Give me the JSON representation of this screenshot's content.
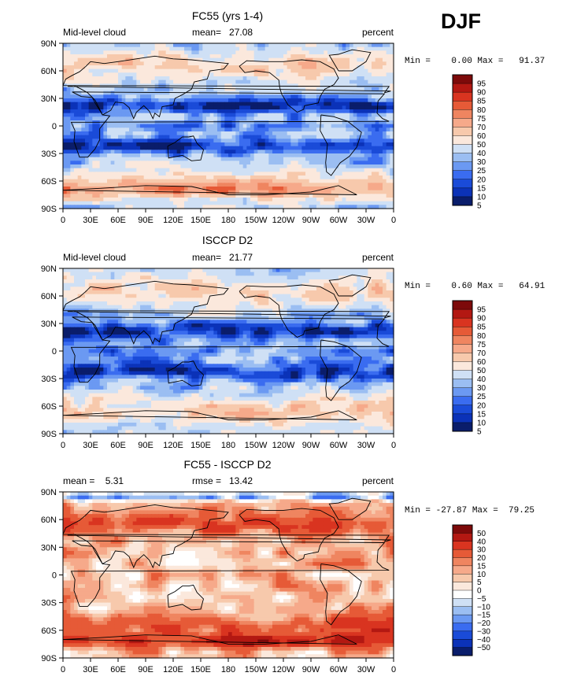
{
  "page": {
    "season": "DJF"
  },
  "palette": {
    "cloud_colors": [
      "#0a1d6b",
      "#0b32b8",
      "#1a4bd8",
      "#3a6cf0",
      "#6b99f2",
      "#9bbef2",
      "#cfe0f5",
      "#fbe8dc",
      "#f7c9ac",
      "#f6a98a",
      "#ef8560",
      "#e65a37",
      "#d93420",
      "#b31812",
      "#7d0a0a"
    ],
    "diff_colors": [
      "#0a1d6b",
      "#0b32b8",
      "#1a4bd8",
      "#3a6cf0",
      "#6b99f2",
      "#9bbef2",
      "#cfe0f5",
      "#ffffff",
      "#fbe8dc",
      "#f7c9ac",
      "#f6a98a",
      "#ef8560",
      "#e65a37",
      "#d93420",
      "#b31812",
      "#7d0a0a"
    ]
  },
  "chart_data": [
    {
      "type": "heatmap",
      "title": "FC55 (yrs 1-4)",
      "left_label": "Mid-level cloud",
      "stat_text": "mean=   27.08",
      "units": "percent",
      "minmax_text": "Min =    0.00 Max =   91.37",
      "legend_levels": [
        "95",
        "90",
        "85",
        "80",
        "75",
        "70",
        "60",
        "50",
        "40",
        "30",
        "25",
        "20",
        "15",
        "10",
        "5"
      ],
      "x_ticks": [
        "0",
        "30E",
        "60E",
        "90E",
        "120E",
        "150E",
        "180",
        "150W",
        "120W",
        "90W",
        "60W",
        "30W",
        "0"
      ],
      "y_ticks": [
        "90N",
        "60N",
        "30N",
        "0",
        "30S",
        "60S",
        "90S"
      ],
      "grid": "off",
      "legend_placement": "right"
    },
    {
      "type": "heatmap",
      "title": "ISCCP D2",
      "left_label": "Mid-level cloud",
      "stat_text": "mean=   21.77",
      "units": "percent",
      "minmax_text": "Min =    0.60 Max =   64.91",
      "legend_levels": [
        "95",
        "90",
        "85",
        "80",
        "75",
        "70",
        "60",
        "50",
        "40",
        "30",
        "25",
        "20",
        "15",
        "10",
        "5"
      ],
      "x_ticks": [
        "0",
        "30E",
        "60E",
        "90E",
        "120E",
        "150E",
        "180",
        "150W",
        "120W",
        "90W",
        "60W",
        "30W",
        "0"
      ],
      "y_ticks": [
        "90N",
        "60N",
        "30N",
        "0",
        "30S",
        "60S",
        "90S"
      ],
      "grid": "off",
      "legend_placement": "right"
    },
    {
      "type": "heatmap",
      "title": "FC55 - ISCCP D2",
      "left_label": "mean =    5.31",
      "stat_text": "rmse =   13.42",
      "units": "percent",
      "minmax_text": "Min = -27.87 Max =  79.25",
      "legend_levels": [
        "50",
        "40",
        "30",
        "20",
        "15",
        "10",
        "5",
        "0",
        "−5",
        "−10",
        "−15",
        "−20",
        "−30",
        "−40",
        "−50"
      ],
      "x_ticks": [
        "0",
        "30E",
        "60E",
        "90E",
        "120E",
        "150E",
        "180",
        "150W",
        "120W",
        "90W",
        "60W",
        "30W",
        "0"
      ],
      "y_ticks": [
        "90N",
        "60N",
        "30N",
        "0",
        "30S",
        "60S",
        "90S"
      ],
      "grid": "off",
      "legend_placement": "right"
    }
  ]
}
